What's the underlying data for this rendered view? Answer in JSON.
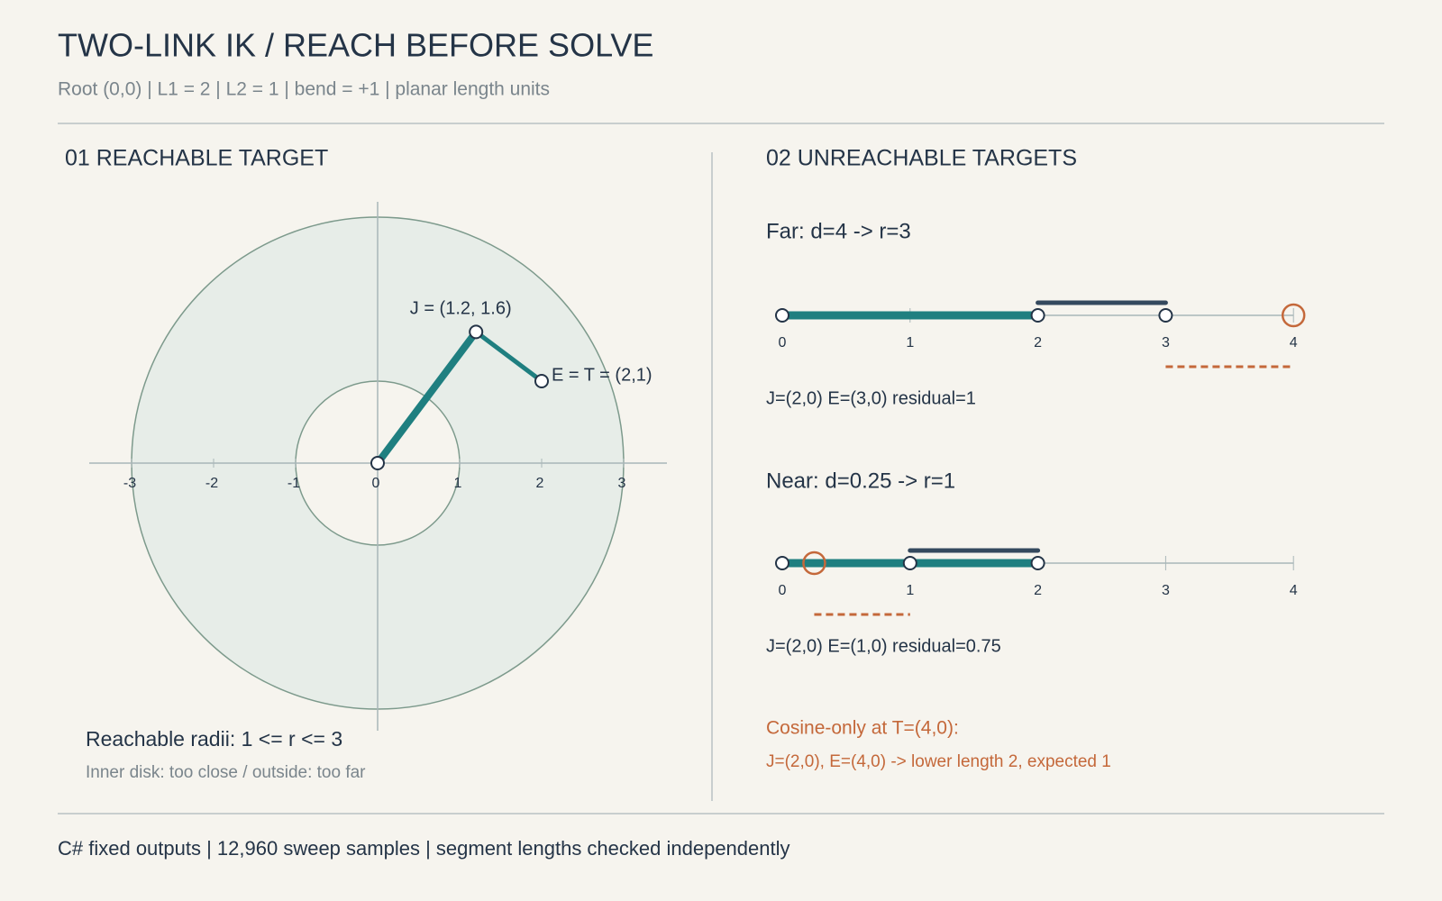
{
  "header": {
    "title": "TWO-LINK IK / REACH BEFORE SOLVE",
    "subtitle": "Root (0,0) | L1 = 2 | L2 = 1 | bend = +1 | planar length units"
  },
  "reach": {
    "heading": "01 REACHABLE TARGET",
    "xticks": [
      -3,
      -2,
      -1,
      0,
      1,
      2,
      3
    ],
    "radii": [
      1,
      3
    ],
    "root": [
      0,
      0
    ],
    "joint": [
      1.2,
      1.6
    ],
    "end": [
      2,
      1
    ],
    "joint_label": "J = (1.2, 1.6)",
    "end_label": "E = T = (2,1)",
    "caption": "Reachable radii: 1 <= r <= 3",
    "note": "Inner disk: too close / outside: too far"
  },
  "unreach": {
    "heading": "02 UNREACHABLE TARGETS",
    "ticks": [
      0,
      1,
      2,
      3,
      4
    ],
    "cases": [
      {
        "label": "Far: d=4 -> r=3",
        "joint": 2,
        "end": 3,
        "target": 4,
        "result": "J=(2,0) E=(3,0) residual=1"
      },
      {
        "label": "Near: d=0.25 -> r=1",
        "joint": 2,
        "end": 1,
        "target": 0.25,
        "result": "J=(2,0) E=(1,0) residual=0.75"
      }
    ],
    "warning_title": "Cosine-only at T=(4,0):",
    "warning": "J=(2,0), E=(4,0) -> lower length 2, expected 1"
  },
  "footer": "C# fixed outputs | 12,960 sweep samples | segment lengths checked independently"
}
